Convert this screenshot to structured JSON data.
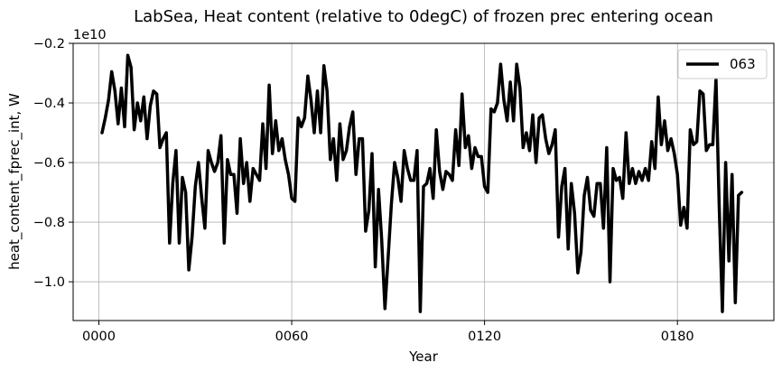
{
  "chart_data": {
    "type": "line",
    "title": "LabSea, Heat content (relative to 0degC) of frozen prec entering ocean",
    "xlabel": "Year",
    "ylabel": "heat_content_fprec_int, W",
    "offset_text": "1e10",
    "y_scale": 10000000000,
    "xlim": [
      -8,
      210
    ],
    "ylim": [
      -11.3,
      -2.0
    ],
    "x_ticks": [
      0,
      60,
      120,
      180
    ],
    "x_tick_labels": [
      "0000",
      "0060",
      "0120",
      "0180"
    ],
    "y_ticks": [
      -10,
      -8,
      -6,
      -4,
      -2
    ],
    "y_tick_labels": [
      "−1.0",
      "−0.8",
      "−0.6",
      "−0.4",
      "−0.2"
    ],
    "grid": true,
    "legend_position": "top-right",
    "series": [
      {
        "name": "063",
        "color": "#000000",
        "x": [
          1,
          2,
          3,
          4,
          5,
          6,
          7,
          8,
          9,
          10,
          11,
          12,
          13,
          14,
          15,
          16,
          17,
          18,
          19,
          20,
          21,
          22,
          23,
          24,
          25,
          26,
          27,
          28,
          29,
          30,
          31,
          32,
          33,
          34,
          35,
          36,
          37,
          38,
          39,
          40,
          41,
          42,
          43,
          44,
          45,
          46,
          47,
          48,
          49,
          50,
          51,
          52,
          53,
          54,
          55,
          56,
          57,
          58,
          59,
          60,
          61,
          62,
          63,
          64,
          65,
          66,
          67,
          68,
          69,
          70,
          71,
          72,
          73,
          74,
          75,
          76,
          77,
          78,
          79,
          80,
          81,
          82,
          83,
          84,
          85,
          86,
          87,
          88,
          89,
          90,
          91,
          92,
          93,
          94,
          95,
          96,
          97,
          98,
          99,
          100,
          101,
          102,
          103,
          104,
          105,
          106,
          107,
          108,
          109,
          110,
          111,
          112,
          113,
          114,
          115,
          116,
          117,
          118,
          119,
          120,
          121,
          122,
          123,
          124,
          125,
          126,
          127,
          128,
          129,
          130,
          131,
          132,
          133,
          134,
          135,
          136,
          137,
          138,
          139,
          140,
          141,
          142,
          143,
          144,
          145,
          146,
          147,
          148,
          149,
          150,
          151,
          152,
          153,
          154,
          155,
          156,
          157,
          158,
          159,
          160,
          161,
          162,
          163,
          164,
          165,
          166,
          167,
          168,
          169,
          170,
          171,
          172,
          173,
          174,
          175,
          176,
          177,
          178,
          179,
          180,
          181,
          182,
          183,
          184,
          185,
          186,
          187,
          188,
          189,
          190,
          191,
          192,
          193,
          194,
          195,
          196,
          197,
          198,
          199,
          200
        ],
        "y": [
          -5.0,
          -4.5,
          -3.9,
          -2.95,
          -3.6,
          -4.7,
          -3.5,
          -4.8,
          -2.4,
          -2.8,
          -4.9,
          -4.0,
          -4.6,
          -3.8,
          -5.2,
          -4.1,
          -3.6,
          -3.7,
          -5.5,
          -5.2,
          -5.0,
          -8.7,
          -6.7,
          -5.6,
          -8.7,
          -6.5,
          -7.0,
          -9.6,
          -8.5,
          -6.8,
          -6.0,
          -7.2,
          -8.2,
          -5.6,
          -6.0,
          -6.3,
          -6.0,
          -5.1,
          -8.7,
          -5.9,
          -6.4,
          -6.4,
          -7.7,
          -5.2,
          -6.7,
          -6.0,
          -7.3,
          -6.2,
          -6.4,
          -6.6,
          -4.7,
          -6.2,
          -3.4,
          -5.7,
          -4.6,
          -5.6,
          -5.2,
          -5.9,
          -6.4,
          -7.2,
          -7.3,
          -4.5,
          -4.8,
          -4.5,
          -3.1,
          -3.9,
          -5.0,
          -3.6,
          -5.0,
          -2.75,
          -3.6,
          -5.9,
          -5.2,
          -6.6,
          -4.7,
          -5.9,
          -5.6,
          -4.8,
          -4.3,
          -6.4,
          -5.2,
          -5.2,
          -8.3,
          -7.6,
          -5.7,
          -9.5,
          -6.9,
          -8.6,
          -10.9,
          -9.2,
          -7.4,
          -6.0,
          -6.5,
          -7.3,
          -5.6,
          -6.2,
          -6.6,
          -6.6,
          -5.6,
          -11.0,
          -6.8,
          -6.7,
          -6.2,
          -7.2,
          -4.9,
          -6.3,
          -6.9,
          -6.3,
          -6.4,
          -6.6,
          -4.9,
          -6.1,
          -3.7,
          -5.5,
          -5.1,
          -6.2,
          -5.5,
          -5.8,
          -5.8,
          -6.8,
          -7.0,
          -4.2,
          -4.3,
          -4.0,
          -2.7,
          -3.9,
          -4.6,
          -3.3,
          -4.6,
          -2.7,
          -3.5,
          -5.5,
          -5.0,
          -5.6,
          -4.4,
          -6.0,
          -4.5,
          -4.4,
          -5.2,
          -5.7,
          -5.4,
          -4.9,
          -8.5,
          -6.8,
          -6.2,
          -8.9,
          -6.7,
          -7.7,
          -9.7,
          -9.0,
          -7.1,
          -6.5,
          -7.6,
          -7.8,
          -6.7,
          -6.7,
          -8.2,
          -5.5,
          -10.0,
          -6.2,
          -6.6,
          -6.5,
          -7.2,
          -5.0,
          -6.7,
          -6.2,
          -6.7,
          -6.3,
          -6.6,
          -6.2,
          -6.6,
          -5.3,
          -6.2,
          -3.8,
          -5.4,
          -4.6,
          -5.6,
          -5.2,
          -5.7,
          -6.4,
          -8.1,
          -7.5,
          -8.2,
          -4.9,
          -5.4,
          -5.3,
          -3.6,
          -3.7,
          -5.6,
          -5.4,
          -5.4,
          -3.2,
          -7.5,
          -11.0,
          -6.0,
          -9.3,
          -6.4,
          -10.7,
          -7.1,
          -7.0
        ]
      }
    ]
  }
}
